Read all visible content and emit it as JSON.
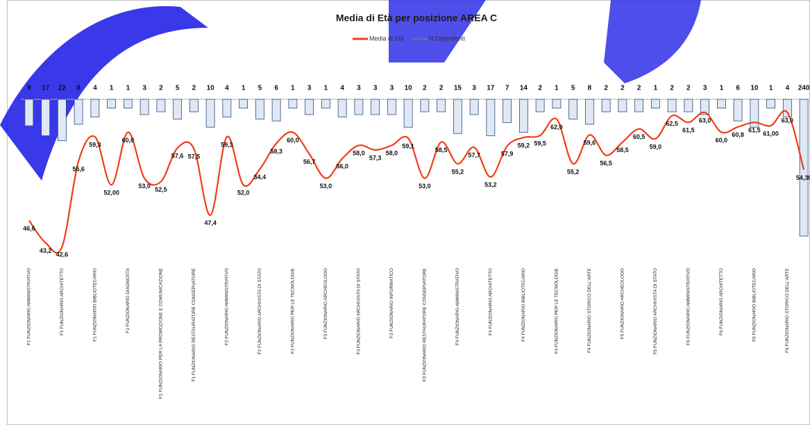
{
  "chart_data": {
    "type": "combo",
    "title": "Media di Età per posizione AREA C",
    "categories": [
      "F1 FUNZIONARIO AMMINISTRATIVO",
      null,
      "F1 FUNZIONARIO ARCHITETTO",
      null,
      "F1 FUNZIONARIO BIBLIOTECARIO",
      null,
      "F1 FUNZIONARIO DIAGNOSTA",
      null,
      "F1 FUNZIONARIO PER LA PROMOZIONE E COMUNICAZIONE",
      null,
      "F1 FUNZIONARIO RESTAURATORE CONSERVATORE",
      null,
      "F2 FUNZIONARIO AMMINISTRATIVO",
      null,
      "F2 FUNZIONARIO ARCHIVISTA DI STATO",
      null,
      "F2 FUNZIONARIO PER LE TECNOLOGIE",
      null,
      "F3 FUNZIONARIO ARCHEOLOGO",
      null,
      "F3 FUNZIONARIO ARCHIVISTA DI STATO",
      null,
      "F3 FUNZIONARIO INFORMATICO",
      null,
      "F3 FUNZIONARIO RESTAURATORE CONSERVATORE",
      null,
      "F4 FUNZIONARIO AMMINISTRATIVO",
      null,
      "F4 FUNZIONARIO ARCHITETTO",
      null,
      "F4 FUNZIONARIO BIBLIOTECARIO",
      null,
      "F4 FUNZIONARIO PER LE TECNOLOGIE",
      null,
      "F4 FUNZIONARIO STORICO DELL'ARTE",
      null,
      "F5 FUNZIONARIO ARCHEOLOGO",
      null,
      "F5 FUNZIONARIO ARCHIVISTA DI STATO",
      null,
      "F6 FUNZIONARIO AMMINISTRATIVO",
      null,
      "F6 FUNZIONARIO ARCHITETTO",
      null,
      "F6 FUNZIONARIO BIBLIOTECARIO",
      null,
      "F6 FUNZIONARIO STORICO DELL'ARTE",
      null
    ],
    "series": [
      {
        "name": "Media di Età",
        "type": "line",
        "axis": "y2",
        "color": "#f03c14",
        "values": [
          46.6,
          43.2,
          42.6,
          55.6,
          59.3,
          52.0,
          60.0,
          53.0,
          52.5,
          57.6,
          57.5,
          47.4,
          59.3,
          52.0,
          54.4,
          58.3,
          60.0,
          56.7,
          53.0,
          56.0,
          58.0,
          57.3,
          58.0,
          59.1,
          53.0,
          58.5,
          55.2,
          57.7,
          53.2,
          57.9,
          59.2,
          59.5,
          62.0,
          55.2,
          59.6,
          56.5,
          58.5,
          60.5,
          59.0,
          62.5,
          61.5,
          63.0,
          60.0,
          60.8,
          61.5,
          61.0,
          63.0,
          54.3
        ],
        "value_labels": [
          "46,6",
          "43,2",
          "42,6",
          "55,6",
          "59,3",
          "52,00",
          "60,0",
          "53,0",
          "52,5",
          "57,6",
          "57,5",
          "47,4",
          "59,3",
          "52,0",
          "54,4",
          "58,3",
          "60,0",
          "56,7",
          "53,0",
          "56,0",
          "58,0",
          "57,3",
          "58,0",
          "59,1",
          "53,0",
          "58,5",
          "55,2",
          "57,7",
          "53,2",
          "57,9",
          "59,2",
          "59,5",
          "62,0",
          "55,2",
          "59,6",
          "56,5",
          "58,5",
          "60,5",
          "59,0",
          "62,5",
          "61,5",
          "63,0",
          "60,0",
          "60,8",
          "61,5",
          "61,00",
          "63,0",
          "54,30"
        ]
      },
      {
        "name": "N.Dipendenti",
        "type": "bar",
        "color": "#4a74b0",
        "values": [
          9,
          17,
          22,
          8,
          4,
          1,
          1,
          3,
          2,
          5,
          2,
          10,
          4,
          1,
          5,
          6,
          1,
          3,
          1,
          4,
          3,
          3,
          3,
          10,
          2,
          2,
          15,
          3,
          17,
          7,
          14,
          2,
          1,
          5,
          8,
          2,
          2,
          2,
          1,
          2,
          2,
          3,
          1,
          6,
          10,
          1,
          4,
          240
        ]
      }
    ],
    "ylim": [
      0,
      240
    ],
    "y_scale": "sqrt",
    "y_reversed": true,
    "y2lim": [
      40,
      65
    ],
    "legend": "top"
  }
}
